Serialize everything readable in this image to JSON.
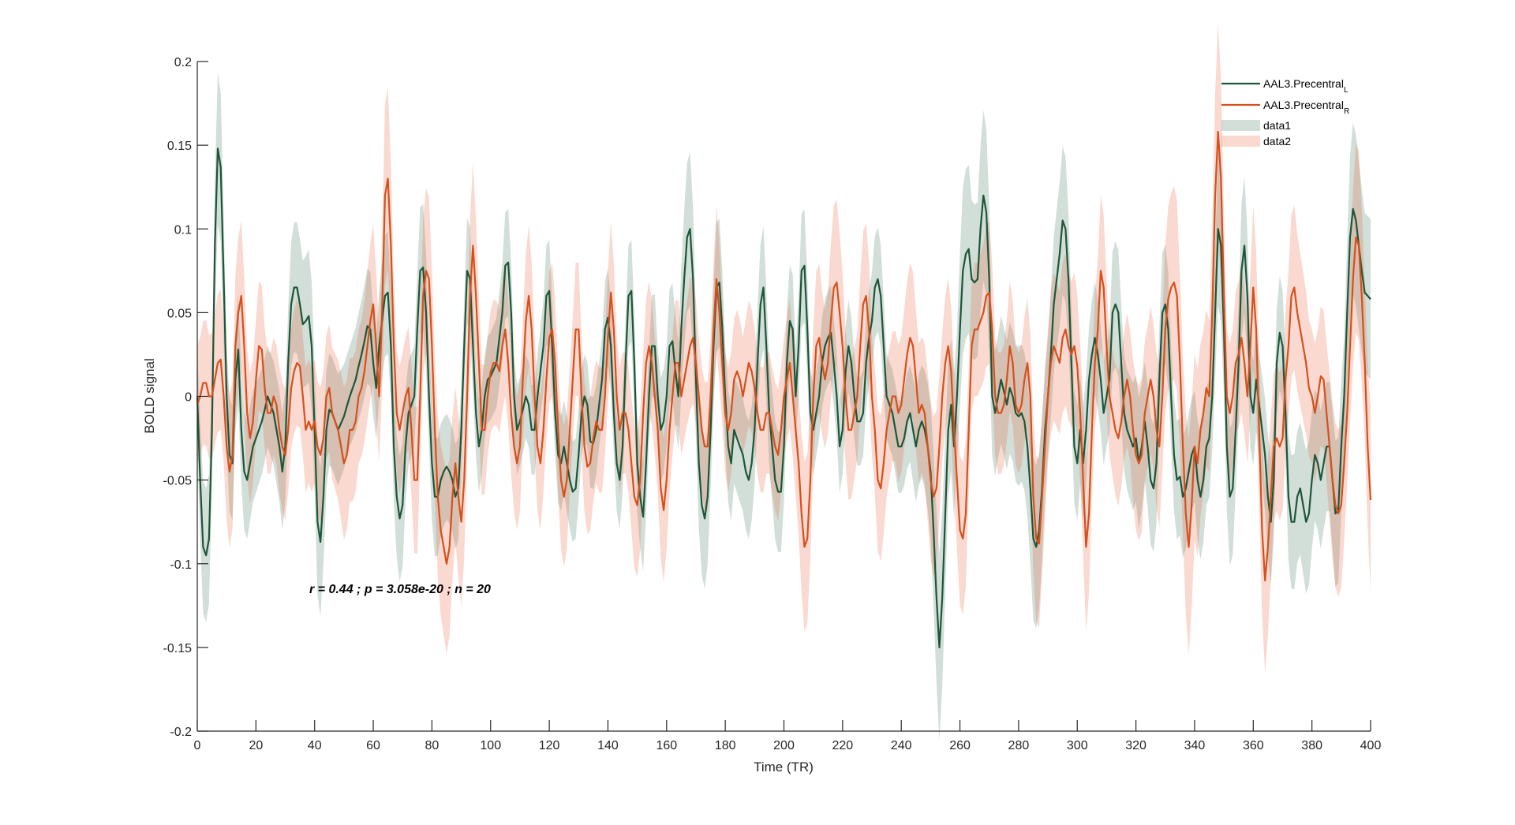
{
  "chart_data": {
    "type": "line",
    "xlabel": "Time (TR)",
    "ylabel": "BOLD signal",
    "xlim": [
      0,
      400
    ],
    "ylim": [
      -0.2,
      0.2
    ],
    "xticks": [
      "0",
      "20",
      "40",
      "60",
      "80",
      "100",
      "120",
      "140",
      "160",
      "180",
      "200",
      "220",
      "240",
      "260",
      "280",
      "300",
      "320",
      "340",
      "360",
      "380",
      "400"
    ],
    "yticks": [
      "-0.2",
      "-0.15",
      "-0.1",
      "-0.05",
      "0",
      "0.05",
      "0.1",
      "0.15",
      "0.2"
    ],
    "grid": false,
    "legend_placement": "top-right",
    "annotation": "r = 0.44 ; p = 3.058e-20 ; n = 20",
    "x_start": 0,
    "x_step": 1,
    "series": [
      {
        "name": "AAL3.Precentral",
        "subscript": "L",
        "color": "#1d5638",
        "values": [
          0,
          -0.05,
          -0.09,
          -0.095,
          -0.085,
          -0.02,
          0.09,
          0.148,
          0.137,
          0.07,
          0,
          -0.035,
          -0.04,
          0.01,
          0.028,
          -0.02,
          -0.045,
          -0.05,
          -0.04,
          -0.03,
          -0.025,
          -0.02,
          -0.015,
          -0.008,
          0,
          -0.005,
          -0.01,
          -0.02,
          -0.03,
          -0.045,
          -0.03,
          0.02,
          0.055,
          0.065,
          0.065,
          0.055,
          0.043,
          0.045,
          0.048,
          0.03,
          -0.02,
          -0.075,
          -0.087,
          -0.06,
          -0.02,
          -0.008,
          -0.01,
          -0.015,
          -0.02,
          -0.016,
          -0.012,
          -0.006,
          0,
          0.005,
          0.01,
          0.018,
          0.025,
          0.033,
          0.042,
          0.04,
          0.02,
          0.005,
          0.03,
          0.045,
          0.06,
          0.062,
          0.03,
          -0.03,
          -0.06,
          -0.073,
          -0.065,
          -0.03,
          -0.01,
          -0.005,
          0,
          0.04,
          0.075,
          0.077,
          0.05,
          0,
          -0.04,
          -0.06,
          -0.06,
          -0.05,
          -0.045,
          -0.042,
          -0.045,
          -0.05,
          -0.06,
          -0.055,
          -0.02,
          0.03,
          0.075,
          0.07,
          0.03,
          -0.01,
          -0.03,
          -0.02,
          0,
          0.01,
          0.012,
          0.016,
          0.02,
          0.035,
          0.05,
          0.078,
          0.08,
          0.05,
          0,
          -0.02,
          -0.015,
          -0.008,
          0,
          -0.005,
          -0.02,
          -0.02,
          0,
          0.015,
          0.03,
          0.06,
          0.063,
          0.03,
          -0.01,
          -0.035,
          -0.04,
          -0.03,
          -0.04,
          -0.05,
          -0.057,
          -0.055,
          -0.035,
          -0.01,
          0,
          -0.005,
          -0.027,
          -0.028,
          -0.02,
          -0.005,
          0.01,
          0.04,
          0.047,
          0.03,
          -0.01,
          -0.04,
          -0.05,
          -0.03,
          0.02,
          0.06,
          0.063,
          0.02,
          -0.04,
          -0.06,
          -0.072,
          -0.04,
          0,
          0.03,
          0.03,
          0,
          -0.02,
          -0.015,
          0,
          0.03,
          0.033,
          0.015,
          0,
          0.04,
          0.07,
          0.095,
          0.1,
          0.07,
          0.01,
          -0.04,
          -0.065,
          -0.073,
          -0.06,
          -0.02,
          0.03,
          0.065,
          0.068,
          0.04,
          0,
          -0.03,
          -0.04,
          -0.02,
          -0.025,
          -0.03,
          -0.035,
          -0.045,
          -0.05,
          -0.04,
          -0.02,
          0.02,
          0.055,
          0.065,
          0.03,
          -0.01,
          -0.03,
          -0.05,
          -0.057,
          -0.057,
          -0.03,
          0.02,
          0.045,
          0.04,
          0,
          0.03,
          0.075,
          0.078,
          0.04,
          -0.01,
          -0.02,
          -0.01,
          0,
          0.02,
          0.03,
          0.035,
          0.038,
          0.02,
          0,
          -0.03,
          -0.02,
          0.015,
          0.03,
          0.02,
          0,
          -0.015,
          -0.015,
          -0.01,
          0.02,
          0.035,
          0.045,
          0.065,
          0.07,
          0.06,
          0.03,
          0,
          -0.005,
          -0.01,
          -0.02,
          -0.03,
          -0.03,
          -0.025,
          -0.015,
          -0.01,
          -0.02,
          -0.03,
          -0.02,
          -0.015,
          -0.02,
          -0.03,
          -0.045,
          -0.08,
          -0.12,
          -0.15,
          -0.12,
          -0.07,
          -0.02,
          -0.005,
          -0.03,
          0,
          0.04,
          0.075,
          0.085,
          0.088,
          0.07,
          0.068,
          0.07,
          0.1,
          0.12,
          0.11,
          0.07,
          0,
          -0.01,
          0,
          0.01,
          0.003,
          -0.005,
          0.005,
          0,
          -0.01,
          -0.012,
          -0.01,
          -0.015,
          -0.03,
          -0.055,
          -0.085,
          -0.09,
          -0.08,
          -0.055,
          -0.02,
          0,
          0.025,
          0.055,
          0.07,
          0.085,
          0.105,
          0.1,
          0.07,
          0.02,
          -0.03,
          -0.04,
          -0.02,
          -0.04,
          -0.02,
          0.01,
          0.025,
          0.035,
          0.025,
          0.01,
          -0.01,
          0,
          0.01,
          0.05,
          0.055,
          0.05,
          0.02,
          -0.01,
          -0.02,
          -0.025,
          -0.03,
          -0.025,
          -0.04,
          -0.03,
          -0.015,
          -0.03,
          -0.05,
          -0.055,
          -0.04,
          0.01,
          0.05,
          0.055,
          0.04,
          0,
          -0.035,
          -0.05,
          -0.048,
          -0.06,
          -0.055,
          -0.045,
          -0.035,
          -0.03,
          -0.05,
          -0.06,
          -0.05,
          -0.03,
          -0.025,
          0,
          0.05,
          0.1,
          0.09,
          0.04,
          -0.03,
          -0.06,
          -0.055,
          -0.02,
          0.02,
          0.075,
          0.09,
          0.06,
          0,
          -0.01,
          0.01,
          -0.005,
          -0.02,
          -0.035,
          -0.06,
          -0.075,
          -0.05,
          0.02,
          0.038,
          0.03,
          -0.01,
          -0.06,
          -0.075,
          -0.075,
          -0.06,
          -0.055,
          -0.065,
          -0.075,
          -0.07,
          -0.05,
          -0.035,
          -0.04,
          -0.05,
          -0.04,
          -0.03,
          -0.03,
          -0.05,
          -0.07,
          -0.068,
          -0.03,
          0,
          0.05,
          0.095,
          0.112,
          0.105,
          0.09,
          0.075,
          0.062,
          0.06,
          0.058
        ]
      },
      {
        "name": "AAL3.Precentral",
        "subscript": "R",
        "color": "#d6501c",
        "values": [
          -0.005,
          0,
          0.008,
          0.008,
          0,
          0,
          0.01,
          0.02,
          0.022,
          0,
          -0.03,
          -0.045,
          -0.035,
          0.03,
          0.05,
          0.06,
          0.03,
          -0.01,
          -0.025,
          -0.015,
          0.01,
          0.03,
          0.028,
          0.005,
          -0.01,
          -0.01,
          0,
          -0.005,
          -0.02,
          -0.03,
          -0.035,
          -0.02,
          0.005,
          0.015,
          0.02,
          0.018,
          0,
          -0.02,
          -0.015,
          -0.02,
          -0.015,
          -0.03,
          -0.035,
          -0.025,
          0,
          0.005,
          -0.01,
          -0.015,
          -0.02,
          -0.03,
          -0.04,
          -0.035,
          -0.02,
          -0.02,
          -0.015,
          0,
          0.005,
          0.015,
          0.03,
          0.045,
          0.055,
          0.03,
          0,
          0.05,
          0.12,
          0.13,
          0.09,
          0.03,
          -0.01,
          -0.02,
          -0.01,
          0,
          0.005,
          -0.02,
          -0.05,
          -0.05,
          0,
          0.06,
          0.075,
          0.07,
          0.03,
          -0.02,
          -0.06,
          -0.08,
          -0.09,
          -0.1,
          -0.09,
          -0.06,
          -0.04,
          -0.06,
          -0.075,
          -0.05,
          0,
          0.06,
          0.09,
          0.06,
          0.02,
          -0.02,
          -0.02,
          0,
          0.015,
          0.02,
          0.02,
          0.015,
          0.03,
          0.04,
          0.02,
          -0.01,
          -0.03,
          -0.04,
          -0.03,
          0.01,
          0.045,
          0.06,
          0.04,
          0,
          -0.03,
          -0.04,
          -0.02,
          0.01,
          0.035,
          0.04,
          0.02,
          -0.02,
          -0.05,
          -0.06,
          -0.05,
          -0.02,
          0.01,
          0.04,
          0.04,
          0,
          -0.03,
          -0.042,
          -0.04,
          -0.025,
          -0.015,
          -0.02,
          -0.02,
          0,
          0.035,
          0.062,
          0.04,
          0,
          -0.02,
          -0.01,
          -0.01,
          -0.02,
          -0.04,
          -0.06,
          -0.065,
          -0.05,
          -0.01,
          0.02,
          0.03,
          0.02,
          0,
          -0.02,
          -0.055,
          -0.068,
          -0.05,
          -0.02,
          0,
          0.02,
          0.02,
          0,
          0.01,
          0.02,
          0.03,
          0.035,
          0.02,
          0,
          -0.02,
          -0.03,
          -0.03,
          0,
          0.04,
          0.07,
          0.05,
          0.02,
          -0.01,
          -0.02,
          -0.01,
          0.01,
          0.015,
          0.01,
          0,
          0.01,
          0.02,
          0.015,
          0.005,
          -0.01,
          -0.02,
          -0.02,
          -0.01,
          -0.01,
          -0.02,
          -0.03,
          -0.035,
          -0.02,
          0,
          0.01,
          0.02,
          0,
          -0.02,
          -0.04,
          -0.07,
          -0.09,
          -0.085,
          -0.05,
          0,
          0.03,
          0.035,
          0.02,
          0.01,
          0.02,
          0.045,
          0.065,
          0.068,
          0.05,
          0.03,
          0,
          -0.02,
          -0.02,
          -0.01,
          0,
          0.03,
          0.055,
          0.06,
          0.04,
          0,
          -0.02,
          -0.05,
          -0.055,
          -0.04,
          -0.02,
          -0.01,
          0,
          0,
          -0.01,
          -0.005,
          0.01,
          0.025,
          0.035,
          0.03,
          0.01,
          -0.01,
          -0.005,
          -0.01,
          -0.03,
          -0.05,
          -0.06,
          -0.055,
          -0.03,
          0,
          0.02,
          0.03,
          0.015,
          -0.02,
          -0.05,
          -0.08,
          -0.085,
          -0.07,
          -0.02,
          0.03,
          0.04,
          0.04,
          0.045,
          0.05,
          0.06,
          0.062,
          0.04,
          0,
          -0.01,
          -0.01,
          -0.005,
          0.01,
          0.03,
          0.02,
          -0.005,
          -0.01,
          -0.005,
          0.01,
          0.02,
          0,
          -0.06,
          -0.085,
          -0.088,
          -0.06,
          -0.03,
          0,
          0.02,
          0.03,
          0.025,
          0.02,
          0.035,
          0.04,
          0.03,
          0.025,
          0.03,
          0.018,
          -0.01,
          -0.05,
          -0.09,
          -0.07,
          -0.02,
          0.02,
          0.04,
          0.075,
          0.065,
          0.03,
          0,
          -0.01,
          -0.02,
          -0.025,
          -0.015,
          0,
          0.01,
          0,
          -0.02,
          -0.035,
          -0.04,
          -0.035,
          -0.01,
          0,
          0.01,
          0,
          -0.02,
          -0.03,
          0,
          0.04,
          0.058,
          0.065,
          0.068,
          0.06,
          0.02,
          -0.03,
          -0.07,
          -0.09,
          -0.065,
          -0.03,
          -0.04,
          -0.02,
          -0.01,
          0.005,
          0,
          0.05,
          0.12,
          0.158,
          0.13,
          0.06,
          0,
          -0.01,
          0,
          0.02,
          0.025,
          0.035,
          0.02,
          0,
          0.03,
          0.065,
          0.04,
          -0.02,
          -0.08,
          -0.11,
          -0.09,
          -0.06,
          -0.03,
          -0.025,
          -0.03,
          -0.025,
          0.01,
          0.03,
          0.06,
          0.065,
          0.05,
          0.04,
          0.03,
          0.02,
          0.005,
          0,
          -0.01,
          0,
          0.012,
          0.01,
          -0.01,
          -0.03,
          -0.05,
          -0.065,
          -0.07,
          -0.065,
          -0.04,
          -0.01,
          0.03,
          0.07,
          0.095,
          0.09,
          0.06,
          0.02,
          -0.03,
          -0.062
        ]
      }
    ],
    "bands": [
      {
        "name": "data1",
        "color": "#1d5c3c",
        "of_series": 0,
        "step": 10,
        "half_width": [
          0.03,
          0.03,
          0.03,
          0.03,
          0.035,
          0.03,
          0.03,
          0.03,
          0.03,
          0.025,
          0.025,
          0.025,
          0.025,
          0.025,
          0.025,
          0.025,
          0.03,
          0.035,
          0.03,
          0.03,
          0.03,
          0.025,
          0.025,
          0.025,
          0.025,
          0.035,
          0.04,
          0.035,
          0.04,
          0.035,
          0.03,
          0.03,
          0.035,
          0.03,
          0.03,
          0.035,
          0.03,
          0.03,
          0.035,
          0.035,
          0.04
        ]
      },
      {
        "name": "data2",
        "color": "#e8603c",
        "of_series": 1,
        "step": 10,
        "half_width": [
          0.035,
          0.04,
          0.035,
          0.035,
          0.035,
          0.04,
          0.04,
          0.035,
          0.04,
          0.04,
          0.035,
          0.035,
          0.035,
          0.035,
          0.035,
          0.035,
          0.035,
          0.035,
          0.035,
          0.035,
          0.035,
          0.04,
          0.04,
          0.035,
          0.04,
          0.04,
          0.035,
          0.035,
          0.035,
          0.04,
          0.04,
          0.035,
          0.04,
          0.045,
          0.05,
          0.04,
          0.04,
          0.04,
          0.04,
          0.04,
          0.045
        ]
      }
    ]
  }
}
